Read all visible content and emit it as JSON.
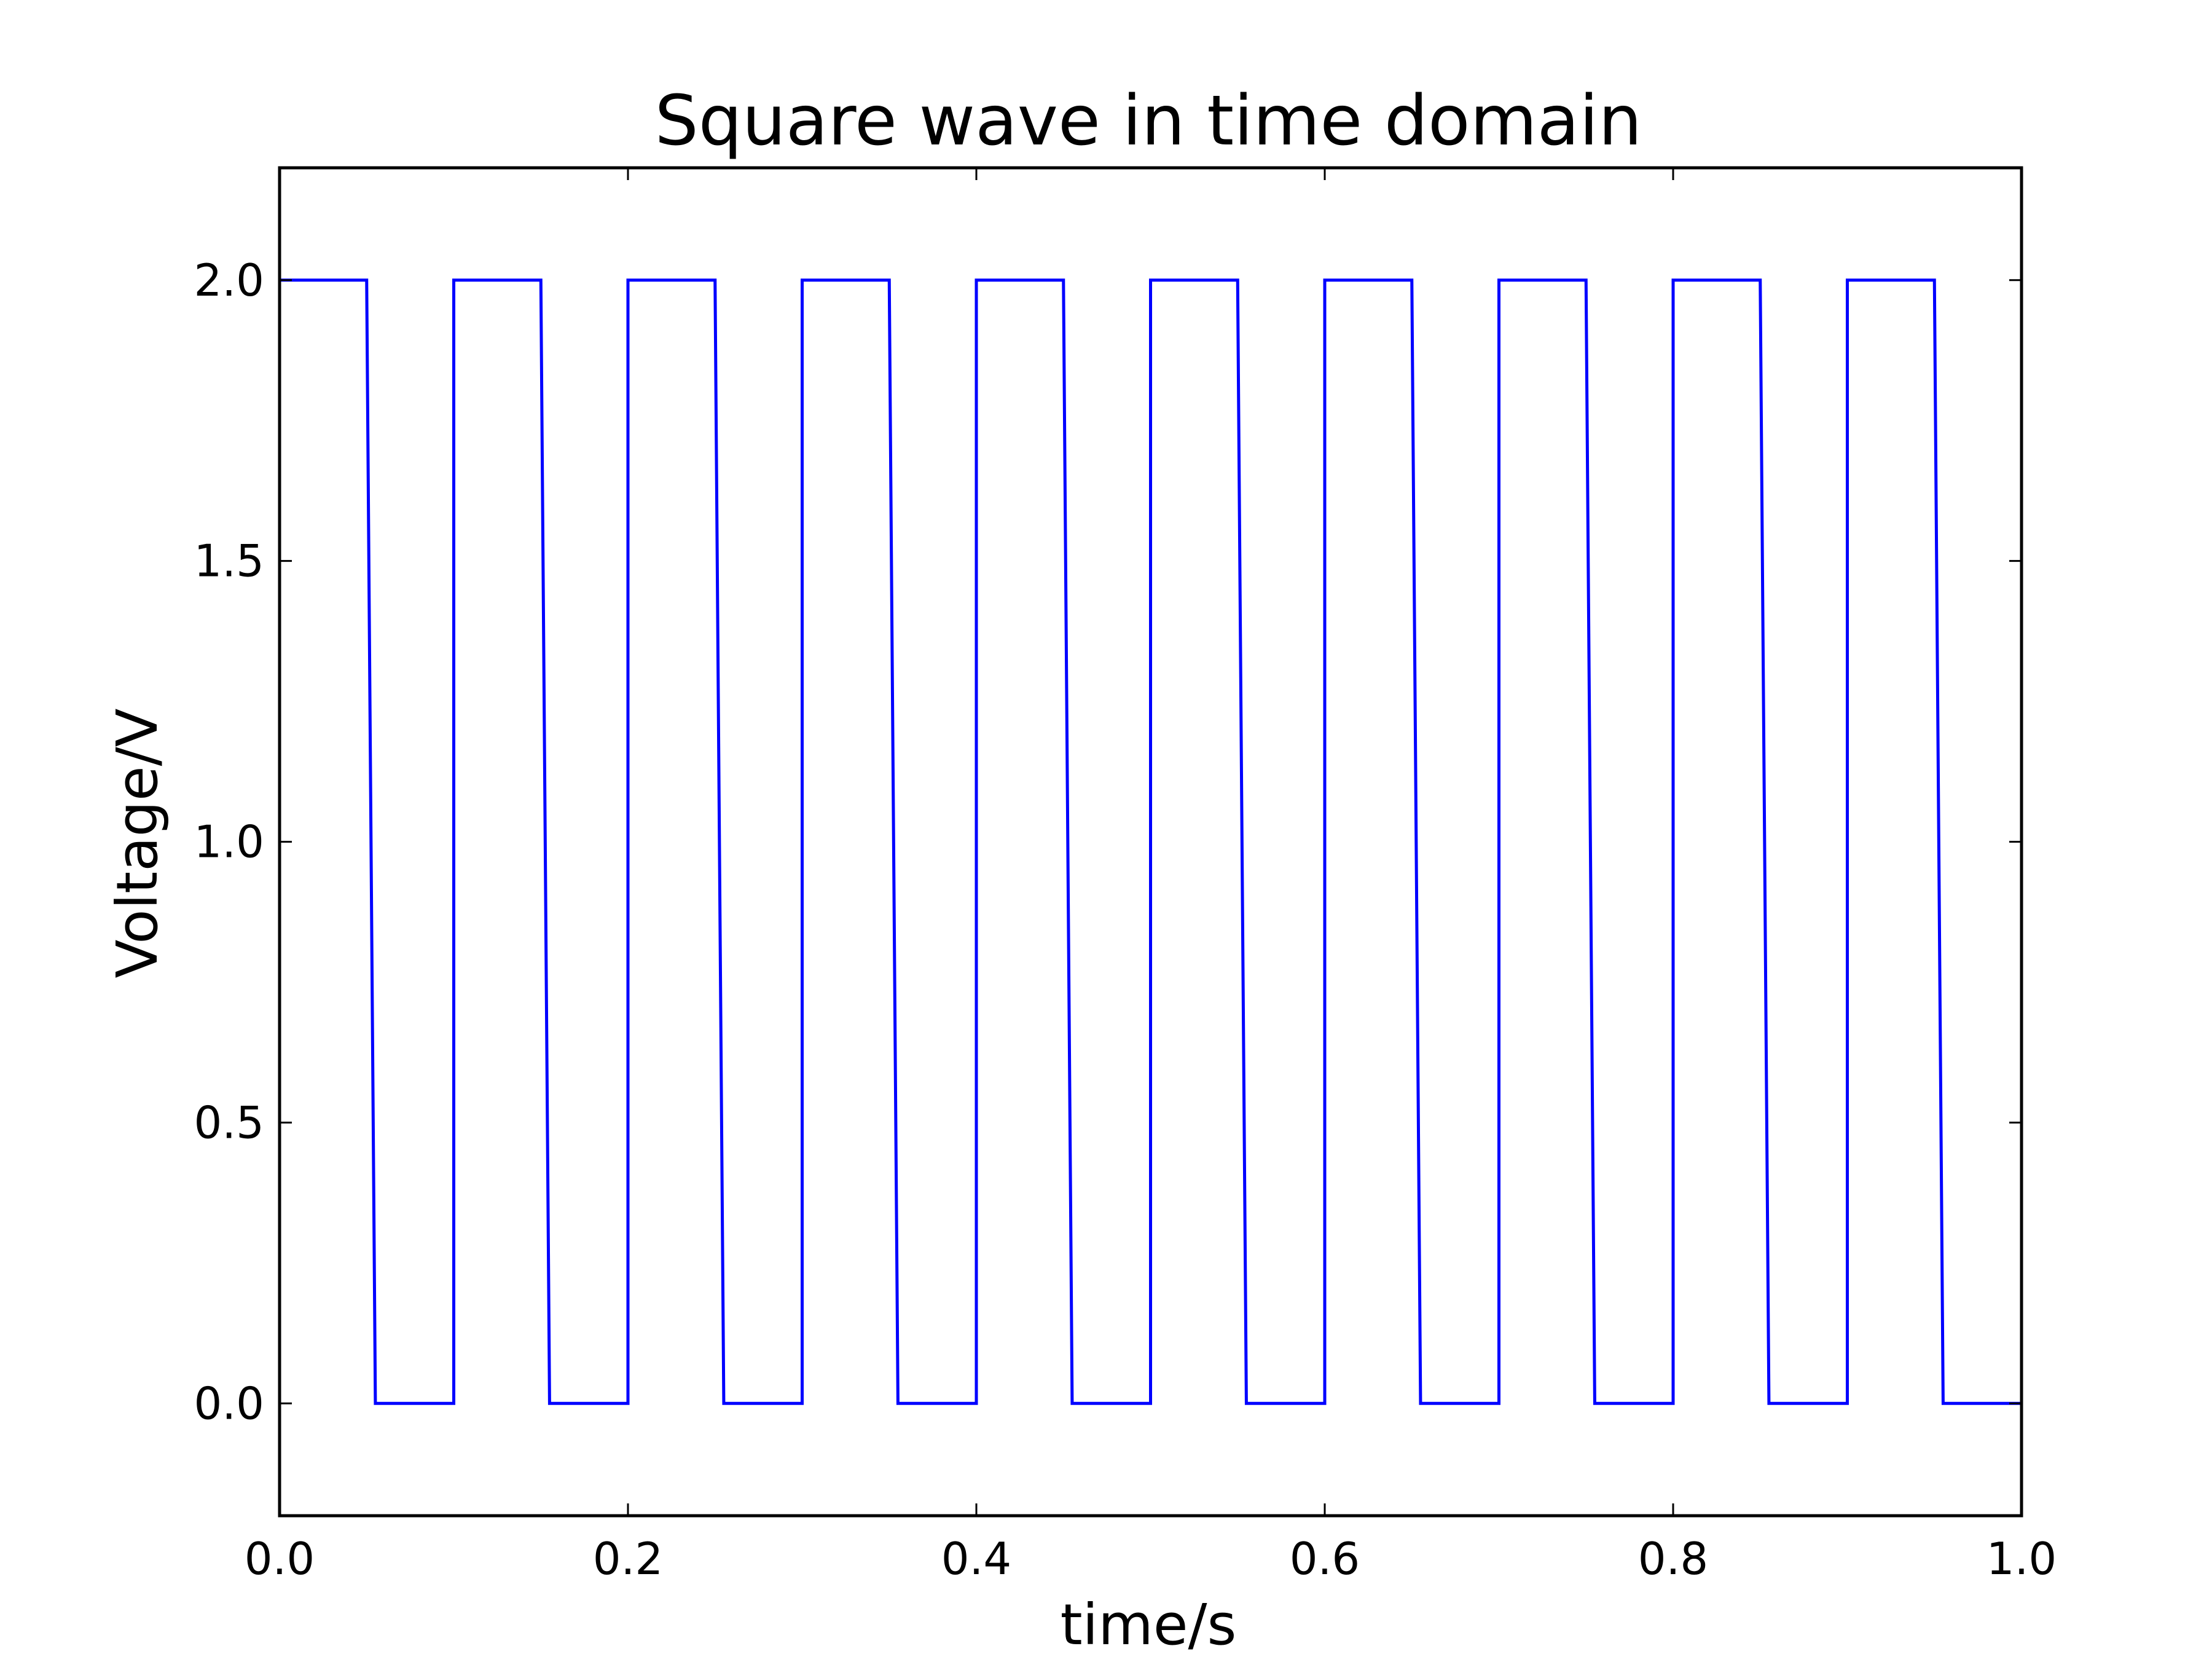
{
  "chart_data": {
    "type": "line",
    "title": "Square wave in time domain",
    "xlabel": "time/s",
    "ylabel": "Voltage/V",
    "xlim": [
      0.0,
      1.0
    ],
    "ylim": [
      -0.2,
      2.2
    ],
    "xticks": [
      "0.0",
      "0.2",
      "0.4",
      "0.6",
      "0.8",
      "1.0"
    ],
    "yticks": [
      "0.0",
      "0.5",
      "1.0",
      "1.5",
      "2.0"
    ],
    "grid": false,
    "legend": "none",
    "colors": {
      "line": "#0000ff",
      "axes": "#000000",
      "background": "#ffffff"
    },
    "series": [
      {
        "x": [
          0.0,
          0.05,
          0.055,
          0.1,
          0.1,
          0.15,
          0.155,
          0.2,
          0.2,
          0.25,
          0.255,
          0.3,
          0.3,
          0.35,
          0.355,
          0.4,
          0.4,
          0.45,
          0.455,
          0.5,
          0.5,
          0.55,
          0.555,
          0.6,
          0.6,
          0.65,
          0.655,
          0.7,
          0.7,
          0.75,
          0.755,
          0.8,
          0.8,
          0.85,
          0.855,
          0.9,
          0.9,
          0.95,
          0.955,
          1.0,
          1.0
        ],
        "y": [
          2.0,
          2.0,
          0.0,
          0.0,
          2.0,
          2.0,
          0.0,
          0.0,
          2.0,
          2.0,
          0.0,
          0.0,
          2.0,
          2.0,
          0.0,
          0.0,
          2.0,
          2.0,
          0.0,
          0.0,
          2.0,
          2.0,
          0.0,
          0.0,
          2.0,
          2.0,
          0.0,
          0.0,
          2.0,
          2.0,
          0.0,
          0.0,
          2.0,
          2.0,
          0.0,
          0.0,
          2.0,
          2.0,
          0.0,
          0.0,
          2.0
        ]
      }
    ]
  }
}
